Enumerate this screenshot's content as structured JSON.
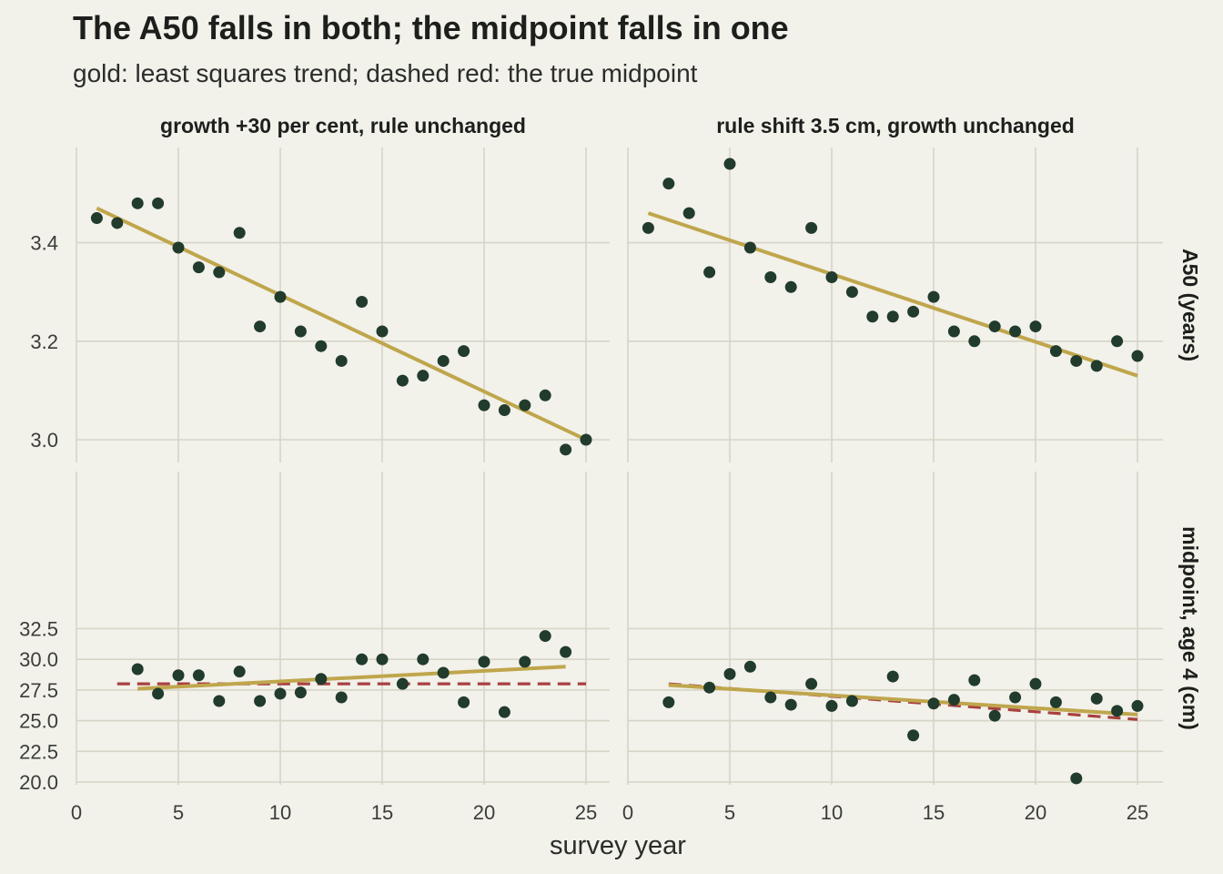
{
  "title": "The A50 falls in both; the midpoint falls in one",
  "subtitle": "gold: least squares trend; dashed red: the true midpoint",
  "colors": {
    "background": "#f2f1ea",
    "grid": "#d6d5c6",
    "point": "#213b2c",
    "trend": "#bfa64c",
    "truth": "#a84040"
  },
  "chart_data": {
    "type": "scatter",
    "xlabel": "survey year",
    "xlim": [
      0,
      26
    ],
    "x_ticks": [
      "0",
      "5",
      "10",
      "15",
      "20",
      "25"
    ],
    "columns": [
      {
        "label": "growth +30 per cent, rule unchanged"
      },
      {
        "label": "rule shift 3.5 cm, growth unchanged"
      }
    ],
    "rows": [
      {
        "label": "A50 (years)",
        "ylim": [
          2.95,
          3.59
        ],
        "y_ticks": [
          "3.0",
          "3.2",
          "3.4"
        ],
        "y_tick_values": [
          3.0,
          3.2,
          3.4
        ]
      },
      {
        "label": "midpoint, age 4 (cm)",
        "ylim": [
          20.0,
          32.5
        ],
        "y_ticks": [
          "20.0",
          "22.5",
          "25.0",
          "27.5",
          "30.0",
          "32.5"
        ],
        "y_tick_values": [
          20.0,
          22.5,
          25.0,
          27.5,
          30.0,
          32.5
        ]
      }
    ],
    "panels": [
      {
        "row": 0,
        "col": 0,
        "points": [
          [
            1,
            3.45
          ],
          [
            2,
            3.44
          ],
          [
            3,
            3.48
          ],
          [
            4,
            3.48
          ],
          [
            5,
            3.39
          ],
          [
            6,
            3.35
          ],
          [
            7,
            3.34
          ],
          [
            8,
            3.42
          ],
          [
            9,
            3.23
          ],
          [
            10,
            3.29
          ],
          [
            11,
            3.22
          ],
          [
            12,
            3.19
          ],
          [
            13,
            3.16
          ],
          [
            14,
            3.28
          ],
          [
            15,
            3.22
          ],
          [
            16,
            3.12
          ],
          [
            17,
            3.13
          ],
          [
            18,
            3.16
          ],
          [
            19,
            3.18
          ],
          [
            20,
            3.07
          ],
          [
            21,
            3.06
          ],
          [
            22,
            3.07
          ],
          [
            23,
            3.09
          ],
          [
            24,
            2.98
          ],
          [
            25,
            3.0
          ]
        ],
        "trend": [
          [
            1,
            3.47
          ],
          [
            25,
            3.0
          ]
        ]
      },
      {
        "row": 0,
        "col": 1,
        "points": [
          [
            1,
            3.43
          ],
          [
            2,
            3.52
          ],
          [
            3,
            3.46
          ],
          [
            4,
            3.34
          ],
          [
            5,
            3.56
          ],
          [
            6,
            3.39
          ],
          [
            7,
            3.33
          ],
          [
            8,
            3.31
          ],
          [
            9,
            3.43
          ],
          [
            10,
            3.33
          ],
          [
            11,
            3.3
          ],
          [
            12,
            3.25
          ],
          [
            13,
            3.25
          ],
          [
            14,
            3.26
          ],
          [
            15,
            3.29
          ],
          [
            16,
            3.22
          ],
          [
            17,
            3.2
          ],
          [
            18,
            3.23
          ],
          [
            19,
            3.22
          ],
          [
            20,
            3.23
          ],
          [
            21,
            3.18
          ],
          [
            22,
            3.16
          ],
          [
            23,
            3.15
          ],
          [
            24,
            3.2
          ],
          [
            25,
            3.17
          ]
        ],
        "trend": [
          [
            1,
            3.46
          ],
          [
            25,
            3.13
          ]
        ]
      },
      {
        "row": 1,
        "col": 0,
        "points": [
          [
            3,
            29.2
          ],
          [
            4,
            27.2
          ],
          [
            5,
            28.7
          ],
          [
            6,
            28.7
          ],
          [
            7,
            26.6
          ],
          [
            8,
            29.0
          ],
          [
            9,
            26.6
          ],
          [
            10,
            27.2
          ],
          [
            11,
            27.3
          ],
          [
            12,
            28.4
          ],
          [
            13,
            26.9
          ],
          [
            14,
            30.0
          ],
          [
            15,
            30.0
          ],
          [
            16,
            28.0
          ],
          [
            17,
            30.0
          ],
          [
            18,
            28.9
          ],
          [
            19,
            26.5
          ],
          [
            20,
            29.8
          ],
          [
            21,
            25.7
          ],
          [
            22,
            29.8
          ],
          [
            23,
            31.9
          ],
          [
            24,
            30.6
          ]
        ],
        "trend": [
          [
            3,
            27.6
          ],
          [
            24,
            29.4
          ]
        ],
        "true_midpoint": [
          [
            2,
            28.0
          ],
          [
            25,
            28.0
          ]
        ]
      },
      {
        "row": 1,
        "col": 1,
        "points": [
          [
            2,
            26.5
          ],
          [
            4,
            27.7
          ],
          [
            5,
            28.8
          ],
          [
            6,
            29.4
          ],
          [
            7,
            26.9
          ],
          [
            8,
            26.3
          ],
          [
            9,
            28.0
          ],
          [
            10,
            26.2
          ],
          [
            11,
            26.6
          ],
          [
            13,
            28.6
          ],
          [
            14,
            23.8
          ],
          [
            15,
            26.4
          ],
          [
            16,
            26.7
          ],
          [
            17,
            28.3
          ],
          [
            18,
            25.4
          ],
          [
            19,
            26.9
          ],
          [
            20,
            28.0
          ],
          [
            21,
            26.5
          ],
          [
            22,
            20.3
          ],
          [
            23,
            26.8
          ],
          [
            24,
            25.8
          ],
          [
            25,
            26.2
          ]
        ],
        "trend": [
          [
            2,
            27.9
          ],
          [
            25,
            25.5
          ]
        ],
        "true_midpoint": [
          [
            2,
            28.0
          ],
          [
            25,
            25.1
          ]
        ]
      }
    ]
  }
}
